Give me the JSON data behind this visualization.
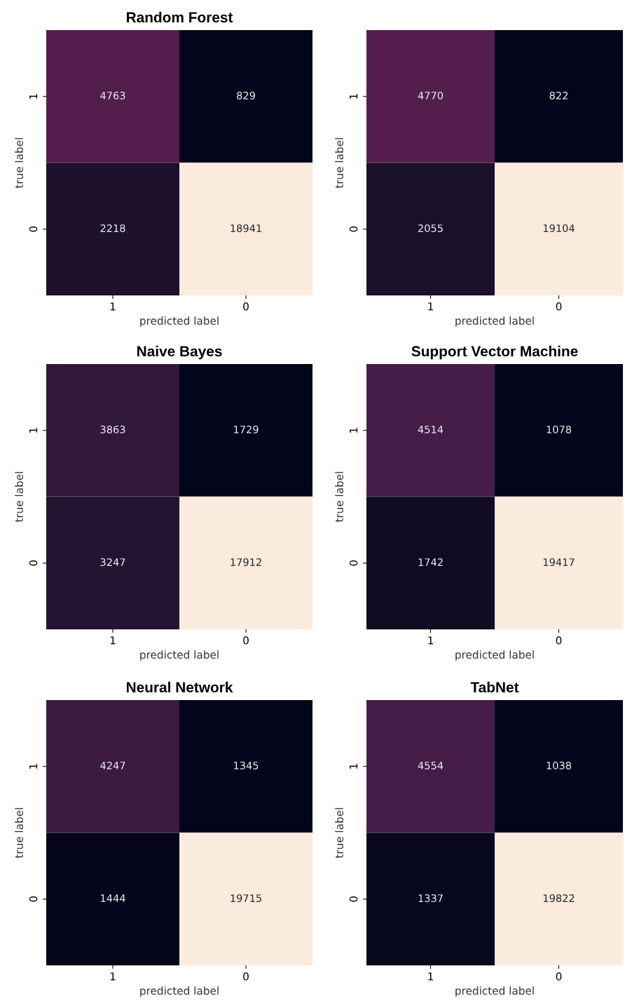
{
  "chart_data": [
    {
      "type": "heatmap",
      "title": "Random Forest",
      "xlabel": "predicted label",
      "ylabel": "true label",
      "categories": [
        "1",
        "0"
      ],
      "y_categories": [
        "1",
        "0"
      ],
      "cells": [
        [
          4763,
          829
        ],
        [
          2218,
          18941
        ]
      ],
      "data_labels": true
    },
    {
      "type": "heatmap",
      "xlabel": "predicted label",
      "ylabel": "true label",
      "categories": [
        "1",
        "0"
      ],
      "y_categories": [
        "1",
        "0"
      ],
      "cells": [
        [
          4770,
          822
        ],
        [
          2055,
          19104
        ]
      ],
      "data_labels": true
    },
    {
      "type": "heatmap",
      "title": "Naive Bayes",
      "xlabel": "predicted label",
      "ylabel": "true label",
      "categories": [
        "1",
        "0"
      ],
      "y_categories": [
        "1",
        "0"
      ],
      "cells": [
        [
          3863,
          1729
        ],
        [
          3247,
          17912
        ]
      ],
      "data_labels": true
    },
    {
      "type": "heatmap",
      "title": "Support Vector Machine",
      "xlabel": "predicted label",
      "ylabel": "true label",
      "categories": [
        "1",
        "0"
      ],
      "y_categories": [
        "1",
        "0"
      ],
      "cells": [
        [
          4514,
          1078
        ],
        [
          1742,
          19417
        ]
      ],
      "data_labels": true
    },
    {
      "type": "heatmap",
      "title": "Neural Network",
      "xlabel": "predicted label",
      "ylabel": "true label",
      "categories": [
        "1",
        "0"
      ],
      "y_categories": [
        "1",
        "0"
      ],
      "cells": [
        [
          4247,
          1345
        ],
        [
          1444,
          19715
        ]
      ],
      "data_labels": true
    },
    {
      "type": "heatmap",
      "title": "TabNet",
      "xlabel": "predicted label",
      "ylabel": "true label",
      "categories": [
        "1",
        "0"
      ],
      "y_categories": [
        "1",
        "0"
      ],
      "cells": [
        [
          4554,
          1038
        ],
        [
          1337,
          19822
        ]
      ],
      "data_labels": true
    }
  ]
}
